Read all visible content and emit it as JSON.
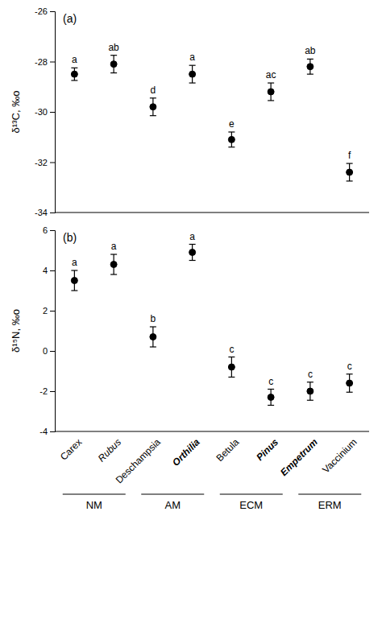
{
  "chart_data": [
    {
      "type": "scatter",
      "title": "(a)",
      "ylabel": "δ¹³C, ‰o",
      "categories": [
        "Carex",
        "Rubus",
        "Deschampsia",
        "Orthilia",
        "Betula",
        "Pinus",
        "Empetrum",
        "Vaccinium"
      ],
      "values": [
        -28.5,
        -28.1,
        -29.8,
        -28.5,
        -31.1,
        -29.2,
        -28.2,
        -32.4
      ],
      "errors": [
        0.25,
        0.35,
        0.35,
        0.35,
        0.3,
        0.35,
        0.3,
        0.35
      ],
      "annotations": [
        "a",
        "ab",
        "d",
        "a",
        "e",
        "ac",
        "ab",
        "f"
      ],
      "ylim": [
        -34,
        -26
      ],
      "yticks": [
        -34,
        -32,
        -30,
        -28,
        -26
      ],
      "color": "#000000",
      "marker": "circle",
      "tick_labels": "y"
    },
    {
      "type": "scatter",
      "title": "(b)",
      "ylabel": "δ¹⁵N, ‰o",
      "categories": [
        "Carex",
        "Rubus",
        "Deschampsia",
        "Orthilia",
        "Betula",
        "Pinus",
        "Empetrum",
        "Vaccinium"
      ],
      "values": [
        3.5,
        4.3,
        0.7,
        4.9,
        -0.8,
        -2.3,
        -2.0,
        -1.6
      ],
      "errors": [
        0.5,
        0.5,
        0.5,
        0.4,
        0.5,
        0.4,
        0.45,
        0.45
      ],
      "annotations": [
        "a",
        "a",
        "b",
        "a",
        "c",
        "c",
        "c",
        "c"
      ],
      "ylim": [
        -4,
        6
      ],
      "yticks": [
        -4,
        -2,
        0,
        2,
        4,
        6
      ],
      "color": "#000000",
      "marker": "circle",
      "groups": [
        {
          "name": "NM",
          "members": [
            "Carex",
            "Rubus"
          ]
        },
        {
          "name": "AM",
          "members": [
            "Deschampsia",
            "Orthilia"
          ]
        },
        {
          "name": "ECM",
          "members": [
            "Betula",
            "Pinus"
          ]
        },
        {
          "name": "ERM",
          "members": [
            "Empetrum",
            "Vaccinium"
          ]
        }
      ]
    }
  ]
}
